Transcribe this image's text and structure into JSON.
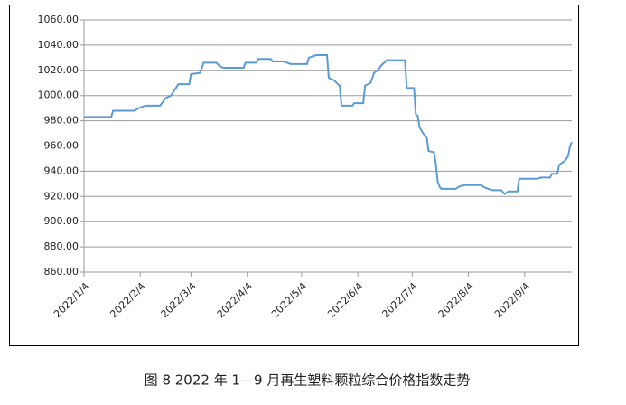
{
  "chart_data": {
    "type": "line",
    "caption": "图 8  2022 年 1—9 月再生塑料颗粒综合价格指数走势",
    "x": [
      "2022/1/4",
      "2022/1/19",
      "2022/1/20",
      "2022/2/1",
      "2022/2/3",
      "2022/2/7",
      "2022/2/15",
      "2022/2/18",
      "2022/2/21",
      "2022/2/25",
      "2022/3/3",
      "2022/3/4",
      "2022/3/9",
      "2022/3/11",
      "2022/3/18",
      "2022/3/20",
      "2022/3/22",
      "2022/4/2",
      "2022/4/3",
      "2022/4/9",
      "2022/4/10",
      "2022/4/17",
      "2022/4/18",
      "2022/4/24",
      "2022/4/26",
      "2022/4/28",
      "2022/5/7",
      "2022/5/8",
      "2022/5/12",
      "2022/5/18",
      "2022/5/19",
      "2022/5/22",
      "2022/5/24",
      "2022/5/25",
      "2022/5/26",
      "2022/6/1",
      "2022/6/2",
      "2022/6/7",
      "2022/6/8",
      "2022/6/11",
      "2022/6/13",
      "2022/6/15",
      "2022/6/17",
      "2022/6/20",
      "2022/6/30",
      "2022/7/1",
      "2022/7/5",
      "2022/7/6",
      "2022/7/7",
      "2022/7/8",
      "2022/7/10",
      "2022/7/12",
      "2022/7/13",
      "2022/7/16",
      "2022/7/17",
      "2022/7/18",
      "2022/7/19",
      "2022/7/20",
      "2022/7/28",
      "2022/7/30",
      "2022/8/2",
      "2022/8/11",
      "2022/8/13",
      "2022/8/17",
      "2022/8/22",
      "2022/8/24",
      "2022/8/26",
      "2022/8/31",
      "2022/9/1",
      "2022/9/11",
      "2022/9/13",
      "2022/9/18",
      "2022/9/19",
      "2022/9/22",
      "2022/9/23",
      "2022/9/26",
      "2022/9/28",
      "2022/9/29",
      "2022/9/30"
    ],
    "values": [
      983,
      983,
      988,
      988,
      990,
      992,
      992,
      998,
      1000,
      1009,
      1009,
      1017,
      1018,
      1026,
      1026,
      1023,
      1022,
      1022,
      1026,
      1026,
      1029,
      1029,
      1027,
      1027,
      1026,
      1025,
      1025,
      1030,
      1032,
      1032,
      1014,
      1012,
      1009,
      1008,
      992,
      992,
      994,
      994,
      1008,
      1010,
      1018,
      1020,
      1024,
      1028,
      1028,
      1006,
      1006,
      985,
      984,
      975,
      970,
      967,
      956,
      955,
      946,
      932,
      928,
      926,
      926,
      928,
      929,
      929,
      927,
      925,
      925,
      922,
      924,
      924,
      934,
      934,
      935,
      935,
      938,
      938,
      945,
      948,
      952,
      960,
      963
    ],
    "color": "#5b9bd5",
    "xlim": [
      "2022/1/4",
      "2022/9/30"
    ],
    "xticks": [
      "2022/1/4",
      "2022/2/4",
      "2022/3/4",
      "2022/4/4",
      "2022/5/4",
      "2022/6/4",
      "2022/7/4",
      "2022/8/4",
      "2022/9/4"
    ],
    "ylim": [
      860,
      1060
    ],
    "yticks": [
      {
        "value": 860,
        "label": "860.00"
      },
      {
        "value": 880,
        "label": "880.00"
      },
      {
        "value": 900,
        "label": "900.00"
      },
      {
        "value": 920,
        "label": "920.00"
      },
      {
        "value": 940,
        "label": "940.00"
      },
      {
        "value": 960,
        "label": "960.00"
      },
      {
        "value": 980,
        "label": "980.00"
      },
      {
        "value": 1000,
        "label": "1000.00"
      },
      {
        "value": 1020,
        "label": "1020.00"
      },
      {
        "value": 1040,
        "label": "1040.00"
      },
      {
        "value": 1060,
        "label": "1060.00"
      }
    ],
    "grid": true
  }
}
